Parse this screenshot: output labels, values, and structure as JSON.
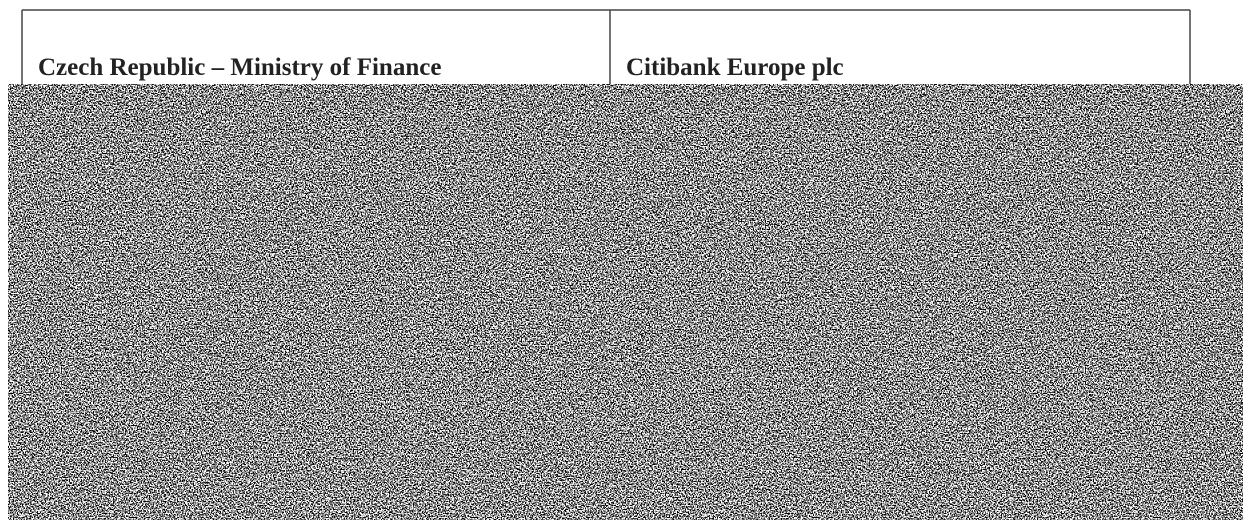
{
  "table": {
    "rows": [
      [
        "Czech Republic – Ministry of Finance",
        "Citibank Europe plc"
      ]
    ]
  }
}
